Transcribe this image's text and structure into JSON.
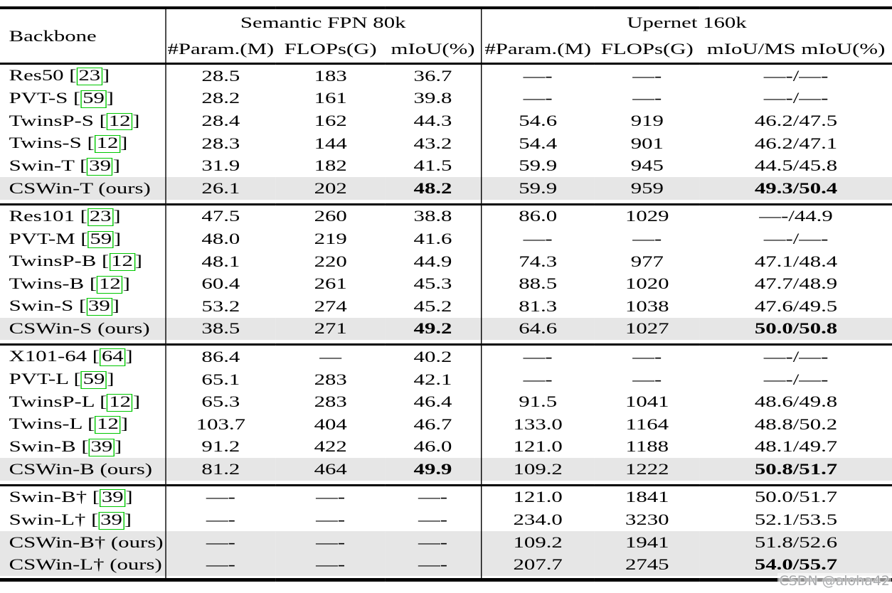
{
  "table": {
    "header": {
      "backbone": "Backbone",
      "groups": [
        {
          "title": "Semantic FPN 80k",
          "cols": [
            "#Param.(M)",
            "FLOPs(G)",
            "mIoU(%)"
          ]
        },
        {
          "title": "Upernet 160k",
          "cols": [
            "#Param.(M)",
            "FLOPs(G)",
            "mIoU/MS mIoU(%)"
          ]
        }
      ]
    },
    "groups": [
      {
        "rows": [
          {
            "label": "Res50",
            "cite": "23",
            "cells": [
              "28.5",
              "183",
              "36.7",
              "—-",
              "—-",
              "—-/—-"
            ],
            "bold": [],
            "highlight": false
          },
          {
            "label": "PVT-S",
            "cite": "59",
            "cells": [
              "28.2",
              "161",
              "39.8",
              "—-",
              "—-",
              "—-/—-"
            ],
            "bold": [],
            "highlight": false
          },
          {
            "label": "TwinsP-S",
            "cite": "12",
            "cells": [
              "28.4",
              "162",
              "44.3",
              "54.6",
              "919",
              "46.2/47.5"
            ],
            "bold": [],
            "highlight": false
          },
          {
            "label": "Twins-S",
            "cite": "12",
            "cells": [
              "28.3",
              "144",
              "43.2",
              "54.4",
              "901",
              "46.2/47.1"
            ],
            "bold": [],
            "highlight": false
          },
          {
            "label": "Swin-T",
            "cite": "39",
            "cells": [
              "31.9",
              "182",
              "41.5",
              "59.9",
              "945",
              "44.5/45.8"
            ],
            "bold": [],
            "highlight": false
          },
          {
            "label": "CSWin-T (ours)",
            "cite": null,
            "cells": [
              "26.1",
              "202",
              "48.2",
              "59.9",
              "959",
              "49.3/50.4"
            ],
            "bold": [
              2,
              5
            ],
            "highlight": true
          }
        ]
      },
      {
        "rows": [
          {
            "label": "Res101",
            "cite": "23",
            "cells": [
              "47.5",
              "260",
              "38.8",
              "86.0",
              "1029",
              "—-/44.9"
            ],
            "bold": [],
            "highlight": false
          },
          {
            "label": "PVT-M",
            "cite": "59",
            "cells": [
              "48.0",
              "219",
              "41.6",
              "—-",
              "—-",
              "—-/—-"
            ],
            "bold": [],
            "highlight": false
          },
          {
            "label": "TwinsP-B",
            "cite": "12",
            "cells": [
              "48.1",
              "220",
              "44.9",
              "74.3",
              "977",
              "47.1/48.4"
            ],
            "bold": [],
            "highlight": false
          },
          {
            "label": "Twins-B",
            "cite": "12",
            "cells": [
              "60.4",
              "261",
              "45.3",
              "88.5",
              "1020",
              "47.7/48.9"
            ],
            "bold": [],
            "highlight": false
          },
          {
            "label": "Swin-S",
            "cite": "39",
            "cells": [
              "53.2",
              "274",
              "45.2",
              "81.3",
              "1038",
              "47.6/49.5"
            ],
            "bold": [],
            "highlight": false
          },
          {
            "label": "CSWin-S (ours)",
            "cite": null,
            "cells": [
              "38.5",
              "271",
              "49.2",
              "64.6",
              "1027",
              "50.0/50.8"
            ],
            "bold": [
              2,
              5
            ],
            "highlight": true
          }
        ]
      },
      {
        "rows": [
          {
            "label": "X101-64",
            "cite": "64",
            "cells": [
              "86.4",
              "—",
              "40.2",
              "—-",
              "—-",
              "—-/—-"
            ],
            "bold": [],
            "highlight": false
          },
          {
            "label": "PVT-L",
            "cite": "59",
            "cells": [
              "65.1",
              "283",
              "42.1",
              "—-",
              "—-",
              "—-/—-"
            ],
            "bold": [],
            "highlight": false
          },
          {
            "label": "TwinsP-L",
            "cite": "12",
            "cells": [
              "65.3",
              "283",
              "46.4",
              "91.5",
              "1041",
              "48.6/49.8"
            ],
            "bold": [],
            "highlight": false
          },
          {
            "label": "Twins-L",
            "cite": "12",
            "cells": [
              "103.7",
              "404",
              "46.7",
              "133.0",
              "1164",
              "48.8/50.2"
            ],
            "bold": [],
            "highlight": false
          },
          {
            "label": "Swin-B",
            "cite": "39",
            "cells": [
              "91.2",
              "422",
              "46.0",
              "121.0",
              "1188",
              "48.1/49.7"
            ],
            "bold": [],
            "highlight": false
          },
          {
            "label": "CSWin-B (ours)",
            "cite": null,
            "cells": [
              "81.2",
              "464",
              "49.9",
              "109.2",
              "1222",
              "50.8/51.7"
            ],
            "bold": [
              2,
              5
            ],
            "highlight": true
          }
        ]
      },
      {
        "rows": [
          {
            "label": "Swin-B†",
            "cite": "39",
            "cells": [
              "—-",
              "—-",
              "—-",
              "121.0",
              "1841",
              "50.0/51.7"
            ],
            "bold": [],
            "highlight": false
          },
          {
            "label": "Swin-L†",
            "cite": "39",
            "cells": [
              "—-",
              "—-",
              "—-",
              "234.0",
              "3230",
              "52.1/53.5"
            ],
            "bold": [],
            "highlight": false
          },
          {
            "label": "CSWin-B† (ours)",
            "cite": null,
            "cells": [
              "—-",
              "—-",
              "—-",
              "109.2",
              "1941",
              "51.8/52.6"
            ],
            "bold": [],
            "highlight": true
          },
          {
            "label": "CSWin-L† (ours)",
            "cite": null,
            "cells": [
              "—-",
              "—-",
              "—-",
              "207.7",
              "2745",
              "54.0/55.7"
            ],
            "bold": [
              5
            ],
            "highlight": true
          }
        ]
      }
    ]
  },
  "watermark": {
    "text": "CSDN @aloha42"
  },
  "colors": {
    "text": "#000000",
    "rule": "#000000",
    "row_highlight": "#e6e6e6",
    "citation_box": "#00c800",
    "watermark_text": "#a9abad",
    "background": "#ffffff"
  }
}
